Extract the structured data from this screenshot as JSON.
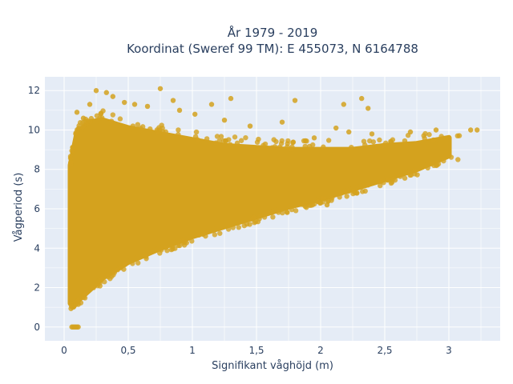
{
  "chart_data": {
    "type": "scatter",
    "title_line1": "År 1979 - 2019",
    "title_line2": "Koordinat (Sweref 99 TM): E 455073, N 6164788",
    "xlabel": "Signifikant våghöjd (m)",
    "ylabel": "Vågperiod (s)",
    "xlim": [
      -0.15,
      3.4
    ],
    "ylim": [
      -0.7,
      12.7
    ],
    "x_ticks": [
      0,
      0.5,
      1,
      1.5,
      2,
      2.5,
      3
    ],
    "x_tick_labels": [
      "0",
      "0,5",
      "1",
      "1,5",
      "2",
      "2,5",
      "3"
    ],
    "y_ticks": [
      0,
      2,
      4,
      6,
      8,
      10,
      12
    ],
    "y_tick_labels": [
      "0",
      "2",
      "4",
      "6",
      "8",
      "10",
      "12"
    ],
    "grid": true,
    "legend": "none",
    "colors": {
      "marker": "#d4a21e",
      "plot_bg": "#e5ecf6",
      "grid": "#ffffff",
      "text": "#2a3f5f"
    },
    "density_envelope": {
      "x": [
        0.05,
        0.1,
        0.2,
        0.3,
        0.5,
        0.75,
        1.0,
        1.25,
        1.5,
        1.75,
        2.0,
        2.25,
        2.5,
        2.75,
        3.0
      ],
      "y_min": [
        1.2,
        1.3,
        1.9,
        2.5,
        3.3,
        4.0,
        4.6,
        5.1,
        5.6,
        6.1,
        6.5,
        7.0,
        7.5,
        8.0,
        8.7
      ],
      "y_max": [
        8.2,
        9.8,
        10.4,
        10.5,
        10.1,
        9.8,
        9.5,
        9.2,
        9.1,
        9.0,
        9.0,
        9.0,
        9.2,
        9.3,
        9.6
      ]
    },
    "points": [
      [
        0.25,
        12.0
      ],
      [
        0.33,
        11.9
      ],
      [
        0.75,
        12.1
      ],
      [
        0.38,
        11.7
      ],
      [
        0.47,
        11.4
      ],
      [
        0.2,
        11.3
      ],
      [
        0.55,
        11.3
      ],
      [
        0.65,
        11.2
      ],
      [
        0.85,
        11.5
      ],
      [
        0.1,
        10.9
      ],
      [
        0.15,
        10.6
      ],
      [
        0.9,
        11.0
      ],
      [
        1.15,
        11.3
      ],
      [
        1.3,
        11.6
      ],
      [
        1.8,
        11.5
      ],
      [
        2.18,
        11.3
      ],
      [
        2.32,
        11.6
      ],
      [
        2.37,
        11.1
      ],
      [
        1.02,
        10.8
      ],
      [
        1.25,
        10.5
      ],
      [
        1.45,
        10.2
      ],
      [
        1.7,
        10.4
      ],
      [
        2.12,
        10.1
      ],
      [
        2.22,
        9.9
      ],
      [
        2.4,
        9.8
      ],
      [
        2.7,
        9.9
      ],
      [
        2.9,
        10.0
      ],
      [
        3.17,
        10.0
      ],
      [
        3.22,
        10.0
      ],
      [
        1.95,
        9.6
      ],
      [
        2.55,
        9.4
      ],
      [
        2.05,
        6.2
      ],
      [
        2.0,
        6.3
      ],
      [
        0.06,
        0.0
      ],
      [
        0.07,
        0.0
      ],
      [
        0.08,
        0.0
      ],
      [
        0.09,
        0.0
      ],
      [
        0.1,
        0.0
      ],
      [
        0.11,
        0.0
      ]
    ]
  }
}
